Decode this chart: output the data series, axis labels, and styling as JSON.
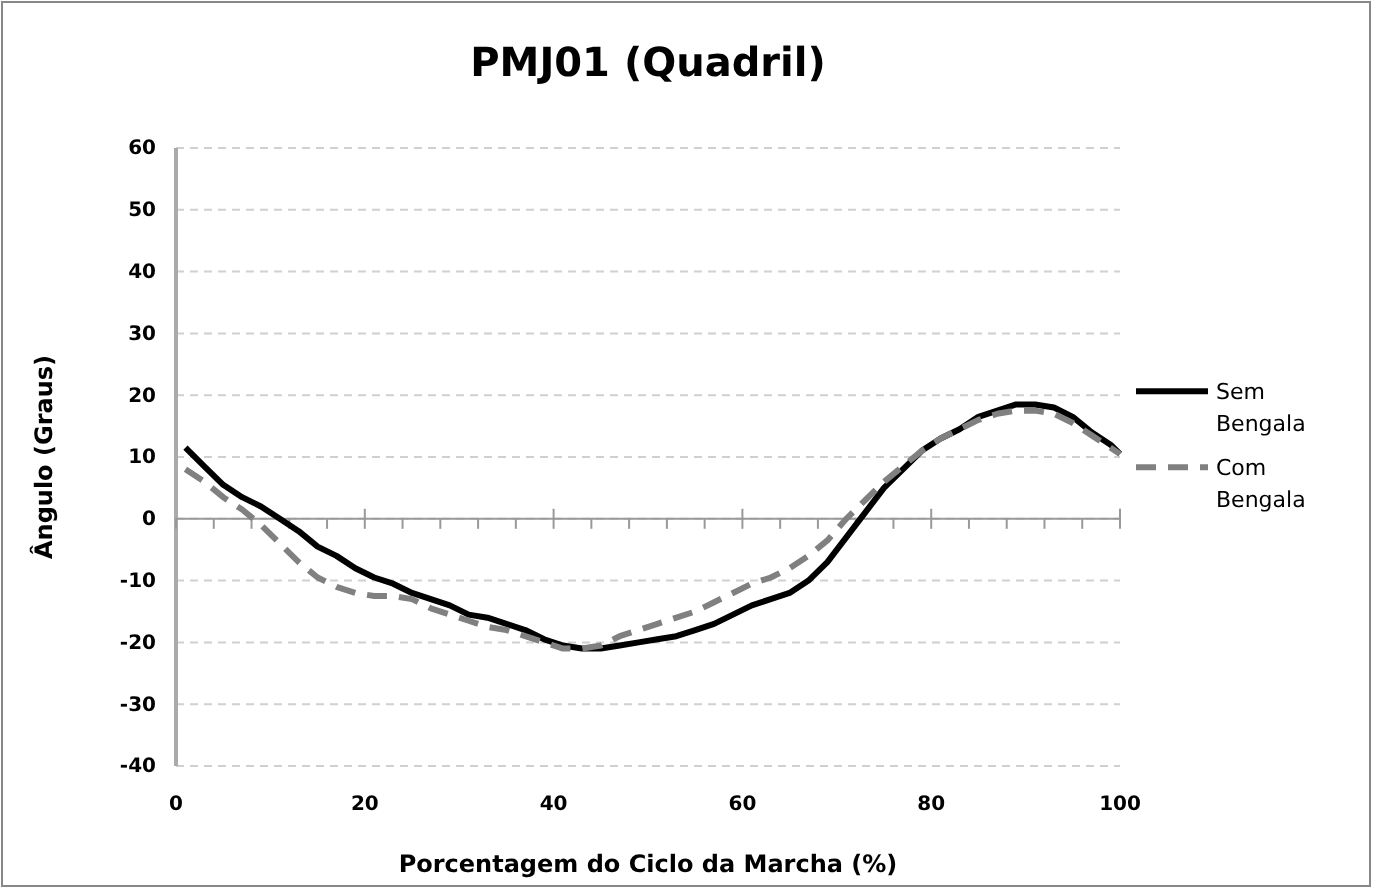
{
  "chart_data": {
    "type": "line",
    "title": "PMJ01 (Quadril)",
    "xlabel": "Porcentagem do Ciclo da Marcha (%)",
    "ylabel": "Ângulo (Graus)",
    "x": [
      1,
      3,
      5,
      7,
      9,
      11,
      13,
      15,
      17,
      19,
      21,
      23,
      25,
      27,
      29,
      31,
      33,
      35,
      37,
      39,
      41,
      43,
      45,
      47,
      49,
      51,
      53,
      55,
      57,
      59,
      61,
      63,
      65,
      67,
      69,
      71,
      73,
      75,
      77,
      79,
      81,
      83,
      85,
      87,
      89,
      91,
      93,
      95,
      97,
      99,
      100
    ],
    "series": [
      {
        "name": "Sem Bengala",
        "color": "#000000",
        "line_style": "solid",
        "values": [
          11.5,
          8.5,
          5.5,
          3.5,
          2,
          0,
          -2,
          -4.5,
          -6,
          -8,
          -9.5,
          -10.5,
          -12,
          -13,
          -14,
          -15.5,
          -16,
          -17,
          -18,
          -19.5,
          -20.5,
          -21,
          -21,
          -20.5,
          -20,
          -19.5,
          -19,
          -18,
          -17,
          -15.5,
          -14,
          -13,
          -12,
          -10,
          -7,
          -3,
          1,
          5,
          8,
          11,
          13,
          14.5,
          16.5,
          17.5,
          18.5,
          18.5,
          18,
          16.5,
          14,
          12,
          10.5
        ]
      },
      {
        "name": "Com Bengala",
        "color": "#808080",
        "line_style": "dashed",
        "values": [
          8,
          6,
          3.5,
          1.5,
          -1,
          -4,
          -7,
          -9.5,
          -11,
          -12,
          -12.5,
          -12.5,
          -13,
          -14.5,
          -15.5,
          -16.5,
          -17.5,
          -18,
          -19,
          -20,
          -21,
          -21,
          -20.5,
          -19,
          -18,
          -17,
          -16,
          -15,
          -13.5,
          -12,
          -10.5,
          -9.5,
          -8,
          -6,
          -3.5,
          0,
          3,
          6,
          8.5,
          11,
          13,
          14.5,
          16,
          17,
          17.5,
          17.5,
          17,
          15.5,
          13.5,
          11.5,
          10.5
        ]
      }
    ],
    "xlim": [
      0,
      100
    ],
    "xticks": [
      0,
      {
        "value": 4,
        "label": null
      },
      {
        "value": 8,
        "label": null
      },
      {
        "value": 12,
        "label": null
      },
      {
        "value": 16,
        "label": null
      },
      20,
      {
        "value": 24,
        "label": null
      },
      {
        "value": 28,
        "label": null
      },
      {
        "value": 32,
        "label": null
      },
      {
        "value": 36,
        "label": null
      },
      40,
      {
        "value": 44,
        "label": null
      },
      {
        "value": 48,
        "label": null
      },
      {
        "value": 52,
        "label": null
      },
      {
        "value": 56,
        "label": null
      },
      60,
      {
        "value": 64,
        "label": null
      },
      {
        "value": 68,
        "label": null
      },
      {
        "value": 72,
        "label": null
      },
      {
        "value": 76,
        "label": null
      },
      80,
      {
        "value": 84,
        "label": null
      },
      {
        "value": 88,
        "label": null
      },
      {
        "value": 92,
        "label": null
      },
      {
        "value": 96,
        "label": null
      },
      100
    ],
    "ylim": [
      -40,
      60
    ],
    "yticks": [
      -40,
      -30,
      -20,
      -10,
      0,
      10,
      20,
      30,
      40,
      50,
      60
    ],
    "grid": "y",
    "legend": "right",
    "marker": "none"
  }
}
